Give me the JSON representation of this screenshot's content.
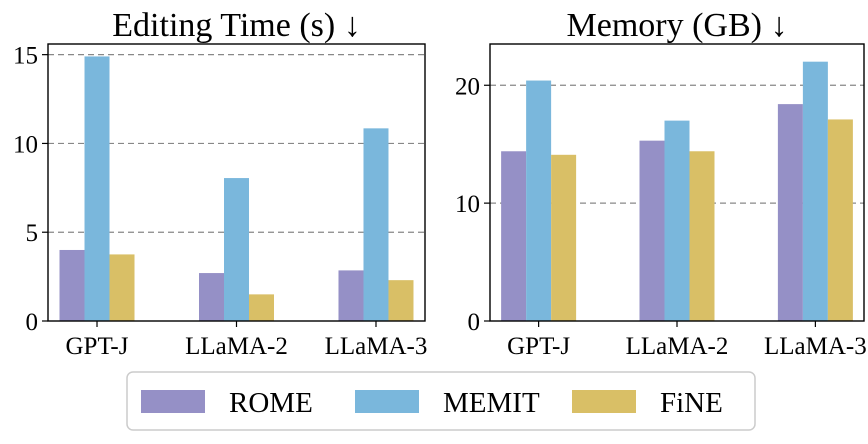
{
  "chart_data": [
    {
      "type": "bar",
      "title": "Editing Time (s) ↓",
      "xlabel": "",
      "ylabel": "",
      "categories": [
        "GPT-J",
        "LLaMA-2",
        "LLaMA-3"
      ],
      "ylim": [
        0,
        15.6
      ],
      "yticks": [
        0,
        5,
        10,
        15
      ],
      "gridlines": [
        5,
        10,
        15
      ],
      "series": [
        {
          "name": "ROME",
          "values": [
            4.0,
            2.7,
            2.85
          ]
        },
        {
          "name": "MEMIT",
          "values": [
            14.9,
            8.05,
            10.85
          ]
        },
        {
          "name": "FiNE",
          "values": [
            3.75,
            1.5,
            2.3
          ]
        }
      ]
    },
    {
      "type": "bar",
      "title": "Memory (GB) ↓",
      "xlabel": "",
      "ylabel": "",
      "categories": [
        "GPT-J",
        "LLaMA-2",
        "LLaMA-3"
      ],
      "ylim": [
        0,
        23.5
      ],
      "yticks": [
        0,
        10,
        20
      ],
      "gridlines": [
        10,
        20
      ],
      "series": [
        {
          "name": "ROME",
          "values": [
            14.4,
            15.3,
            18.4
          ]
        },
        {
          "name": "MEMIT",
          "values": [
            20.4,
            17.0,
            22.0
          ]
        },
        {
          "name": "FiNE",
          "values": [
            14.1,
            14.4,
            17.1
          ]
        }
      ]
    }
  ],
  "legend": {
    "position": "bottom-center",
    "items": [
      {
        "label": "ROME",
        "color": "#9590c6"
      },
      {
        "label": "MEMIT",
        "color": "#7ab7dc"
      },
      {
        "label": "FiNE",
        "color": "#d9bf66"
      }
    ]
  }
}
